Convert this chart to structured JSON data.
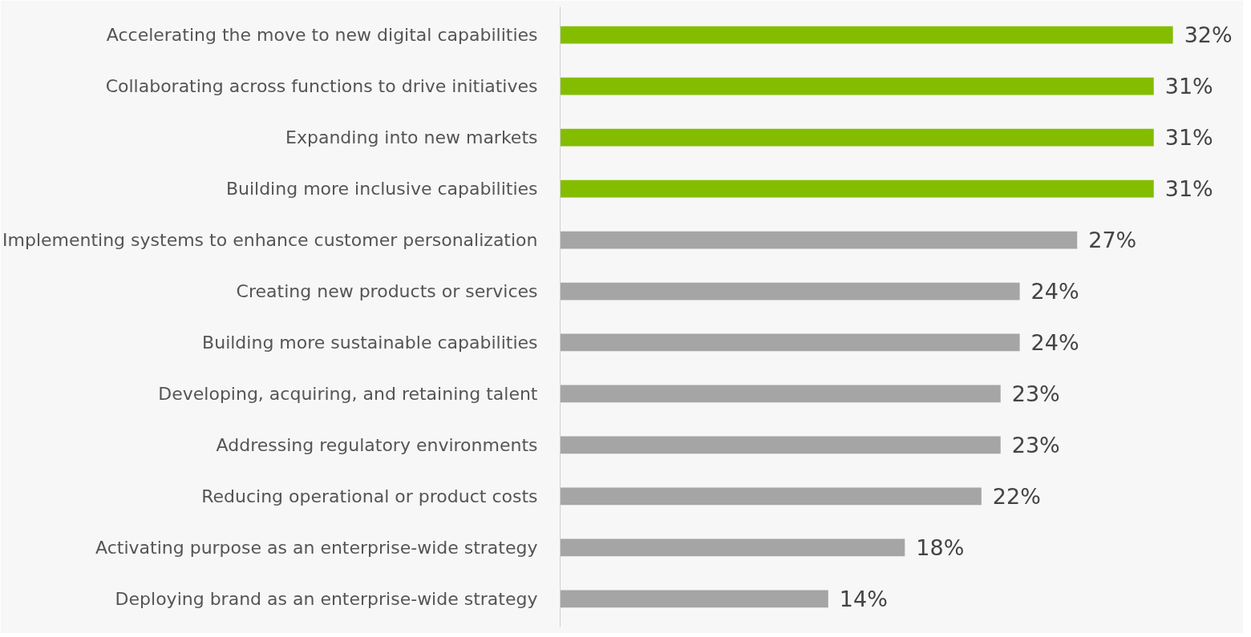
{
  "chart_data": {
    "type": "bar",
    "orientation": "horizontal",
    "categories": [
      "Accelerating the move to new digital capabilities",
      "Collaborating across functions to drive initiatives",
      "Expanding into new markets",
      "Building more inclusive capabilities",
      "Implementing systems to enhance customer personalization",
      "Creating new products or services",
      "Building more sustainable capabilities",
      "Developing, acquiring, and retaining talent",
      "Addressing regulatory environments",
      "Reducing operational or product costs",
      "Activating purpose as an enterprise-wide strategy",
      "Deploying brand as an enterprise-wide strategy"
    ],
    "values": [
      32,
      31,
      31,
      31,
      27,
      24,
      24,
      23,
      23,
      22,
      18,
      14
    ],
    "colors": [
      "#84bd00",
      "#84bd00",
      "#84bd00",
      "#84bd00",
      "#a5a5a5",
      "#a5a5a5",
      "#a5a5a5",
      "#a5a5a5",
      "#a5a5a5",
      "#a5a5a5",
      "#a5a5a5",
      "#a5a5a5"
    ],
    "value_labels": [
      "32%",
      "31%",
      "31%",
      "31%",
      "27%",
      "24%",
      "24%",
      "23%",
      "23%",
      "22%",
      "18%",
      "14%"
    ],
    "tick_labels": "y",
    "grid": false
  }
}
